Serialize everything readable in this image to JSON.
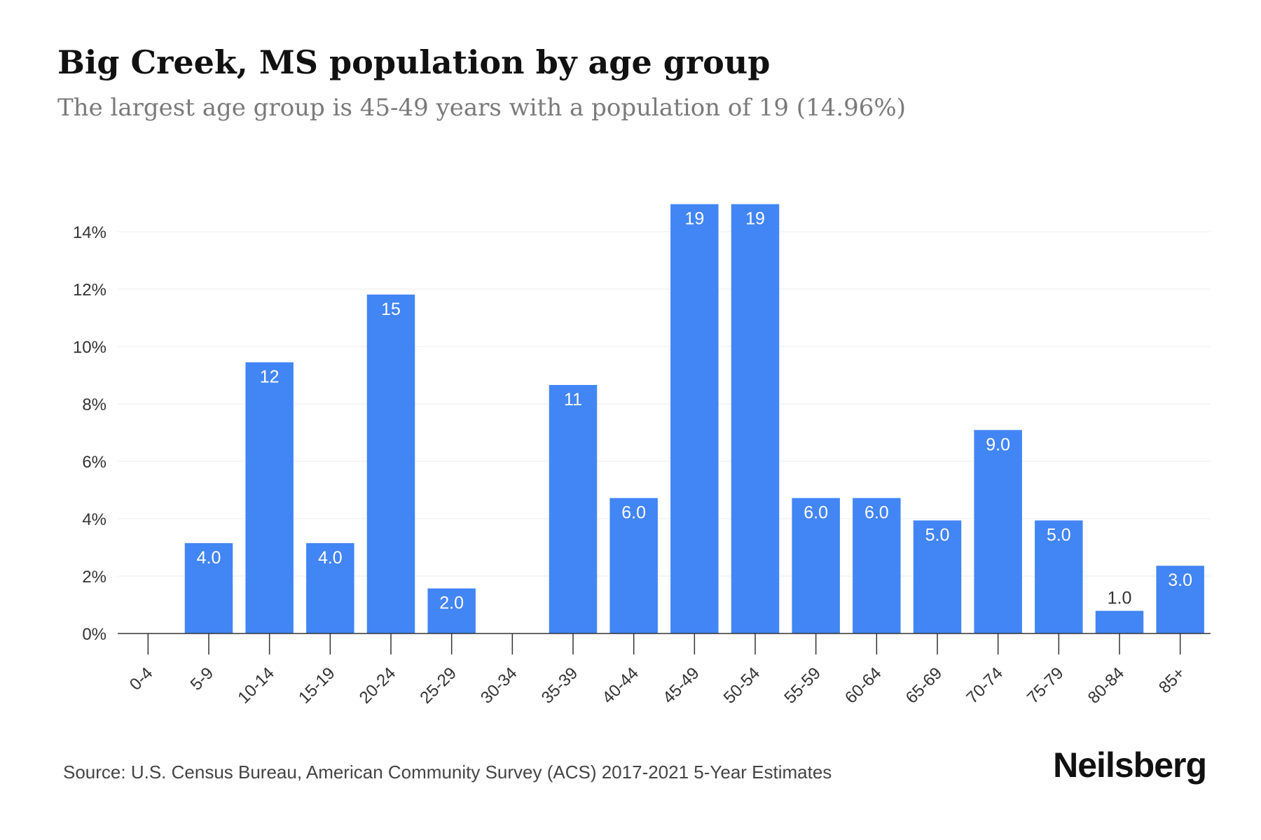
{
  "title": "Big Creek, MS population by age group",
  "subtitle": "The largest age group is 45-49 years with a population of 19 (14.96%)",
  "source": "Source: U.S. Census Bureau, American Community Survey (ACS) 2017-2021 5-Year Estimates",
  "brand": "Neilsberg",
  "colors": {
    "bar": "#4285f4",
    "grid": "#eeeeee",
    "axis": "#333333",
    "bar_label": "#ffffff",
    "label_dark": "#333333"
  },
  "chart_data": {
    "type": "bar",
    "categories": [
      "0-4",
      "5-9",
      "10-14",
      "15-19",
      "20-24",
      "25-29",
      "30-34",
      "35-39",
      "40-44",
      "45-49",
      "50-54",
      "55-59",
      "60-64",
      "65-69",
      "70-74",
      "75-79",
      "80-84",
      "85+"
    ],
    "values": [
      0,
      3.15,
      9.45,
      3.15,
      11.81,
      1.57,
      0,
      8.66,
      4.72,
      14.96,
      14.96,
      4.72,
      4.72,
      3.94,
      7.09,
      3.94,
      0.79,
      2.36
    ],
    "data_labels": [
      "",
      "4.0",
      "12",
      "4.0",
      "15",
      "2.0",
      "",
      "11",
      "6.0",
      "19",
      "19",
      "6.0",
      "6.0",
      "5.0",
      "9.0",
      "5.0",
      "1.0",
      "3.0"
    ],
    "yticks": [
      0,
      2,
      4,
      6,
      8,
      10,
      12,
      14
    ],
    "ytick_labels": [
      "0%",
      "2%",
      "4%",
      "6%",
      "8%",
      "10%",
      "12%",
      "14%"
    ],
    "ylim": [
      0,
      15
    ],
    "grid": true,
    "legend": "none"
  }
}
